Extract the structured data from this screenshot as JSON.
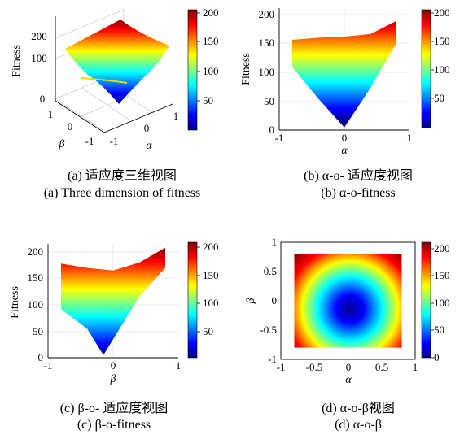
{
  "chart_data": [
    {
      "id": "a",
      "type": "surface3d",
      "zlabel": "Fitness",
      "xlabel": "α",
      "ylabel": "β",
      "x_ticks": [
        "-1",
        "0",
        "1"
      ],
      "y_ticks": [
        "-1",
        "0",
        "1"
      ],
      "z_ticks": [
        "0",
        "100",
        "200"
      ],
      "zlim": [
        0,
        250
      ],
      "colorbar": {
        "ticks": [
          "50",
          "100",
          "150",
          "200"
        ],
        "range": [
          5,
          210
        ]
      },
      "caption_cn": "(a) 适应度三维视图",
      "caption_en": "(a) Three dimension of fitness"
    },
    {
      "id": "b",
      "type": "area",
      "xlabel": "α",
      "ylabel": "Fitness",
      "xlim": [
        -1,
        1
      ],
      "ylim": [
        0,
        220
      ],
      "x_ticks": [
        "-1",
        "0",
        "1"
      ],
      "y_ticks": [
        "0",
        "50",
        "100",
        "150",
        "200"
      ],
      "upper": {
        "x": [
          -0.8,
          -0.4,
          0,
          0.4,
          0.8
        ],
        "y": [
          172,
          176,
          178,
          183,
          208
        ]
      },
      "lower": {
        "x": [
          -0.8,
          -0.4,
          0,
          0.4,
          0.8
        ],
        "y": [
          120,
          60,
          5,
          80,
          165
        ]
      },
      "colorbar": {
        "ticks": [
          "50",
          "100",
          "150",
          "200"
        ],
        "range": [
          5,
          210
        ]
      },
      "caption_cn": "(b) α-o- 适应度视图",
      "caption_en": "(b) α-o-fitness"
    },
    {
      "id": "c",
      "type": "area",
      "xlabel": "β",
      "ylabel": "Fitness",
      "xlim": [
        -1,
        1
      ],
      "ylim": [
        0,
        220
      ],
      "x_ticks": [
        "-1",
        "0",
        "1"
      ],
      "y_ticks": [
        "0",
        "50",
        "100",
        "150",
        "200"
      ],
      "upper": {
        "x": [
          -0.8,
          -0.4,
          0,
          0.4,
          0.8
        ],
        "y": [
          178,
          170,
          165,
          180,
          208
        ]
      },
      "lower": {
        "x": [
          -0.8,
          -0.4,
          -0.15,
          0.4,
          0.8
        ],
        "y": [
          92,
          55,
          5,
          115,
          170
        ]
      },
      "colorbar": {
        "ticks": [
          "50",
          "100",
          "150",
          "200"
        ],
        "range": [
          5,
          210
        ]
      },
      "caption_cn": "(c) β-o- 适应度视图",
      "caption_en": "(c) β-o-fitness"
    },
    {
      "id": "d",
      "type": "heatmap",
      "xlabel": "α",
      "ylabel": "β",
      "xlim": [
        -1,
        1
      ],
      "ylim": [
        -1,
        1
      ],
      "x_ticks": [
        "-1",
        "-0.5",
        "0",
        "0.5",
        "1"
      ],
      "y_ticks": [
        "-1",
        "-0.5",
        "0",
        "0.5",
        "1"
      ],
      "data_extent": {
        "x": [
          -0.8,
          0.8
        ],
        "y": [
          -0.8,
          0.8
        ]
      },
      "minimum": {
        "x": 0,
        "y": -0.1,
        "value": 0
      },
      "colorbar": {
        "ticks": [
          "0",
          "50",
          "100",
          "150",
          "200"
        ],
        "range": [
          0,
          210
        ]
      },
      "caption_cn": "(d) α-o-β视图",
      "caption_en": "(d) α-o-β"
    }
  ]
}
